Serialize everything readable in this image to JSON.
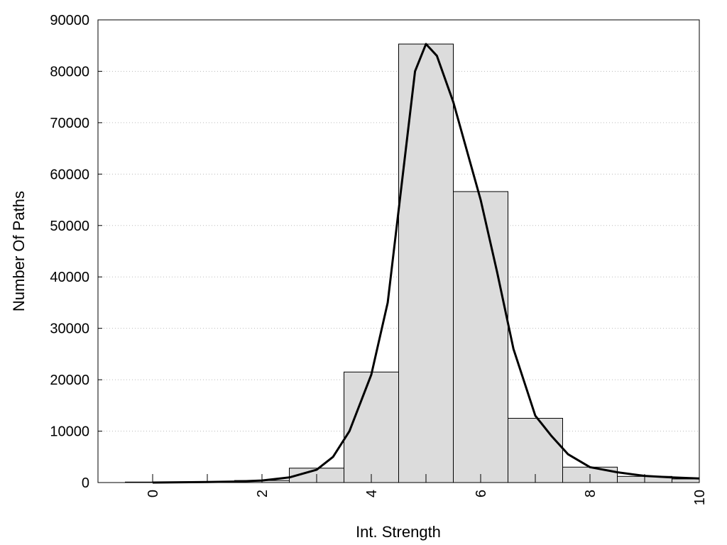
{
  "chart_data": {
    "type": "bar",
    "title": "",
    "xlabel": "Int. Strength",
    "ylabel": "Number Of Paths",
    "xlim": [
      -1,
      10
    ],
    "ylim": [
      0,
      90000
    ],
    "x_ticks": [
      "0",
      "2",
      "4",
      "6",
      "8",
      "10"
    ],
    "y_ticks": [
      "0",
      "10000",
      "20000",
      "30000",
      "40000",
      "50000",
      "60000",
      "70000",
      "80000",
      "90000"
    ],
    "grid": "horizontal dotted",
    "categories": [
      "0",
      "1",
      "2",
      "3",
      "4",
      "5",
      "6",
      "7",
      "8",
      "9",
      "10"
    ],
    "values": [
      100,
      150,
      400,
      2800,
      21500,
      85300,
      56600,
      12500,
      3000,
      1200,
      700
    ],
    "curve": {
      "type": "line",
      "x": [
        0,
        0.5,
        1,
        1.5,
        2,
        2.5,
        3,
        3.3,
        3.6,
        4,
        4.3,
        4.6,
        4.8,
        5,
        5.2,
        5.5,
        6,
        6.3,
        6.6,
        7,
        7.3,
        7.6,
        8,
        8.5,
        9,
        9.5,
        10
      ],
      "y": [
        0,
        50,
        100,
        200,
        400,
        1000,
        2500,
        5000,
        10000,
        21000,
        35000,
        62000,
        80000,
        85300,
        83000,
        74000,
        55000,
        41000,
        26000,
        13000,
        9000,
        5500,
        3000,
        2000,
        1300,
        1000,
        800
      ],
      "color": "#000000"
    },
    "bar_color": "#dcdcdc",
    "bar_edge_color": "#000000"
  }
}
